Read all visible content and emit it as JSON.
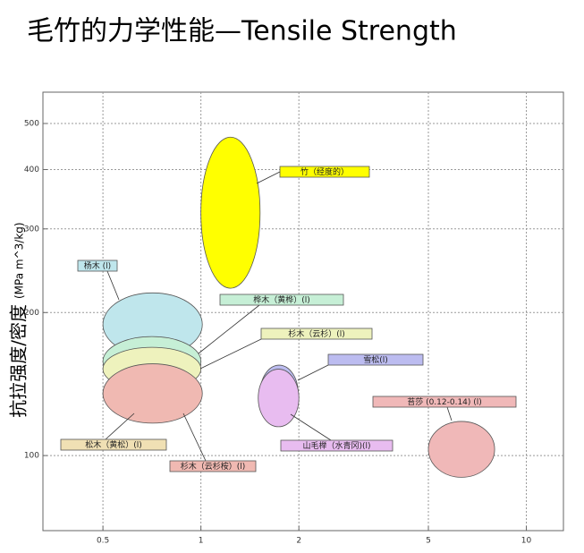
{
  "chart_data": {
    "type": "ellipse",
    "title": "毛竹的力学性能—Tensile Strength",
    "ylabel": "抗拉强度/密度",
    "ylabel_units": "(MPa m^3/kg)",
    "xscale": "log",
    "yscale": "log",
    "grid": true,
    "xlim": [
      0.327,
      13.0
    ],
    "ylim": [
      69.5,
      582
    ],
    "xticks": [
      0.5,
      1,
      2,
      5,
      10
    ],
    "yticks": [
      100,
      200,
      300,
      400,
      500
    ],
    "series": [
      {
        "name": "竹（经度的）",
        "color": "#ffff00",
        "x": [
          1.0,
          1.52
        ],
        "y": [
          225,
          468
        ]
      },
      {
        "name": "杨木 (l)",
        "color": "#bfe6ec",
        "x": [
          0.5,
          1.01
        ],
        "y": [
          162,
          220
        ]
      },
      {
        "name": "桦木（黄桦）(l)",
        "color": "#c6efd6",
        "x": [
          0.5,
          1.0
        ],
        "y": [
          140,
          178
        ]
      },
      {
        "name": "杉木（云杉）(l)",
        "color": "#eef2bd",
        "x": [
          0.5,
          1.0
        ],
        "y": [
          137,
          169
        ]
      },
      {
        "name": "松木（黄松）(l)",
        "color": "#f0e0b4",
        "x": [
          0.5,
          1.0
        ],
        "y": [
          120,
          152
        ]
      },
      {
        "name": "杉木（云杉桉）(l)",
        "color": "#f0b9b2",
        "x": [
          0.5,
          1.01
        ],
        "y": [
          117,
          156
        ]
      },
      {
        "name": "雪松(l)",
        "color": "#bcbcf0",
        "x": [
          1.52,
          1.99
        ],
        "y": [
          118,
          155
        ]
      },
      {
        "name": "山毛榉（水青冈)(l)",
        "color": "#e8bcf0",
        "x": [
          1.5,
          2.0
        ],
        "y": [
          115,
          152
        ]
      },
      {
        "name": "苔莎 (0.12-0.14) (l)",
        "color": "#f0b8b8",
        "x": [
          5.0,
          7.99
        ],
        "y": [
          90,
          118
        ]
      }
    ]
  }
}
